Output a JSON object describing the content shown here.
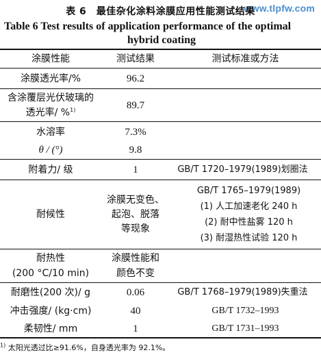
{
  "watermark": "www.tlpfw.com",
  "caption": {
    "cn": "表 6　最佳杂化涂料涂膜应用性能测试结果",
    "en_line1": "Table 6    Test results of application performance of the optimal",
    "en_line2": "hybrid coating"
  },
  "headers": [
    "涂膜性能",
    "测试结果",
    "测试标准或方法"
  ],
  "rows": [
    {
      "property": "涂膜透光率/%",
      "result": "96.2",
      "method": ""
    },
    {
      "property_l1": "含涂覆层光伏玻璃的",
      "property_l2": "透光率/ %",
      "property_sup": "1)",
      "result": "89.7",
      "method": ""
    },
    {
      "property": "水溶率",
      "result": "7.3%",
      "method": ""
    },
    {
      "property": "θ / (°)",
      "result": "9.8",
      "method": ""
    },
    {
      "property": "附着力/ 级",
      "result": "1",
      "method": "GB/T 1720–1979(1989)划圈法"
    },
    {
      "property": "耐候性",
      "result_lines": [
        "涂膜无变色、",
        "起泡、脱落",
        "等现象"
      ],
      "method_lines": [
        "GB/T 1765–1979(1989)",
        "(1) 人工加速老化 240 h",
        "(2) 耐中性盐雾 120 h",
        "(3) 耐湿热性试验 120 h"
      ]
    },
    {
      "property_lines": [
        "耐热性",
        "(200 °C/10 min)"
      ],
      "result_lines": [
        "涂膜性能和",
        "颜色不变"
      ],
      "method": ""
    },
    {
      "property": "耐磨性(200 次)/ g",
      "result": "0.06",
      "method": "GB/T 1768–1979(1989)失重法"
    },
    {
      "property": "冲击强度/ (kg·cm)",
      "result": "40",
      "method": "GB/T 1732–1993"
    },
    {
      "property": "柔韧性/ mm",
      "result": "1",
      "method": "GB/T 1731–1993"
    }
  ],
  "footnote_sup": "1)",
  "footnote": "太阳光透过比≥91.6%，自身透光率为 92.1%。"
}
